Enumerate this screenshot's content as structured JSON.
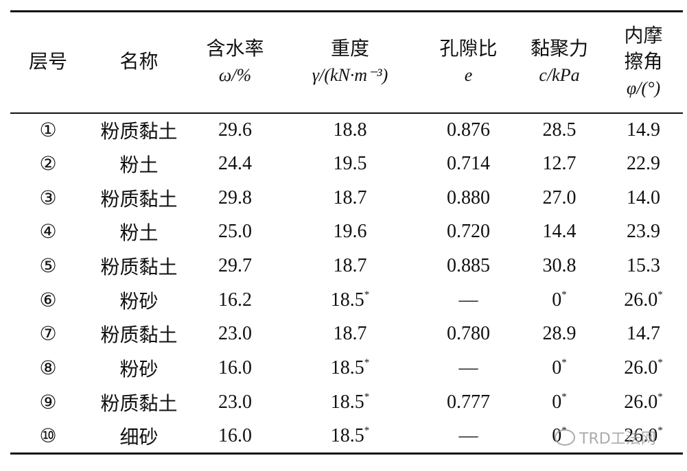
{
  "table": {
    "columns": [
      {
        "name": "层号"
      },
      {
        "name": "名称"
      },
      {
        "name": "含水率",
        "unit": "ω/%"
      },
      {
        "name": "重度",
        "unit": "γ/(kN·m⁻³)"
      },
      {
        "name": "孔隙比",
        "unit": "e"
      },
      {
        "name": "黏聚力",
        "unit": "c/kPa"
      },
      {
        "name": "内摩擦角",
        "unit": "φ/(°)"
      }
    ],
    "rows": [
      [
        "①",
        "粉质黏土",
        "29.6",
        "18.8",
        "0.876",
        "28.5",
        "14.9"
      ],
      [
        "②",
        "粉土",
        "24.4",
        "19.5",
        "0.714",
        "12.7",
        "22.9"
      ],
      [
        "③",
        "粉质黏土",
        "29.8",
        "18.7",
        "0.880",
        "27.0",
        "14.0"
      ],
      [
        "④",
        "粉土",
        "25.0",
        "19.6",
        "0.720",
        "14.4",
        "23.9"
      ],
      [
        "⑤",
        "粉质黏土",
        "29.7",
        "18.7",
        "0.885",
        "30.8",
        "15.3"
      ],
      [
        "⑥",
        "粉砂",
        "16.2",
        {
          "text": "18.5",
          "sup": "*"
        },
        "—",
        {
          "text": "0",
          "sup": "*"
        },
        {
          "text": "26.0",
          "sup": "*"
        }
      ],
      [
        "⑦",
        "粉质黏土",
        "23.0",
        "18.7",
        "0.780",
        "28.9",
        "14.7"
      ],
      [
        "⑧",
        "粉砂",
        "16.0",
        {
          "text": "18.5",
          "sup": "*"
        },
        "—",
        {
          "text": "0",
          "sup": "*"
        },
        {
          "text": "26.0",
          "sup": "*"
        }
      ],
      [
        "⑨",
        "粉质黏土",
        "23.0",
        {
          "text": "18.5",
          "sup": "*"
        },
        "0.777",
        {
          "text": "0",
          "sup": "*"
        },
        {
          "text": "26.0",
          "sup": "*"
        }
      ],
      [
        "⑩",
        "细砂",
        "16.0",
        {
          "text": "18.5",
          "sup": "*"
        },
        "—",
        {
          "text": "0",
          "sup": "*"
        },
        {
          "text": "26.0",
          "sup": "*"
        }
      ]
    ]
  },
  "watermark": "TRD工法网"
}
